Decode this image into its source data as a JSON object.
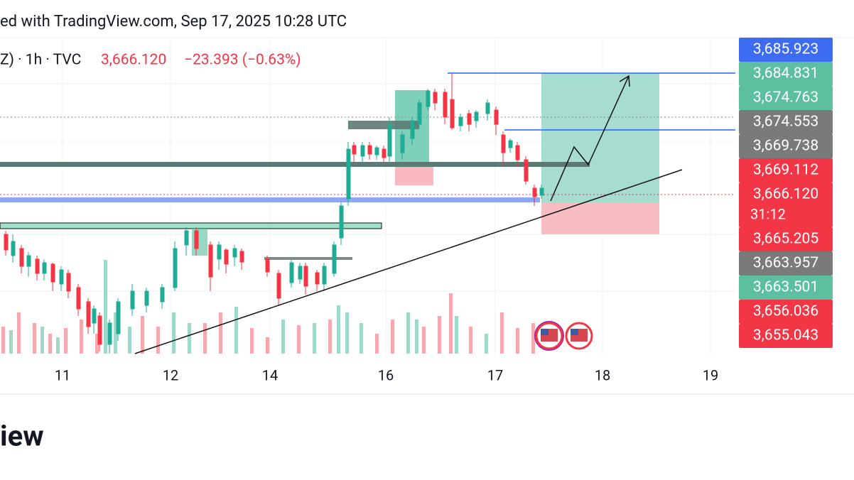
{
  "header": {
    "caption": "ed with TradingView.com, Sep 17, 2025 10:28 UTC"
  },
  "symbol": {
    "name": "Z) · 1h · TVC",
    "last": "3,666.120",
    "change": "−23.393 (−0.63%)"
  },
  "price_tags": [
    {
      "text": "3,685.923",
      "color": "#3d6cf2"
    },
    {
      "text": "3,684.831",
      "color": "#5cbf9f"
    },
    {
      "text": "3,674.763",
      "color": "#5cbf9f"
    },
    {
      "text": "3,674.553",
      "color": "#7a7a7a"
    },
    {
      "text": "3,669.738",
      "color": "#7a7a7a"
    },
    {
      "text": "3,669.112",
      "color": "#f23645"
    },
    {
      "text": "3,666.120",
      "sub": "31:12",
      "color": "#f23645"
    },
    {
      "text": "3,665.205",
      "color": "#f23645"
    },
    {
      "text": "3,663.957",
      "color": "#7a7a7a"
    },
    {
      "text": "3,663.501",
      "color": "#5cbf9f"
    },
    {
      "text": "3,656.036",
      "color": "#f23645"
    },
    {
      "text": "3,655.043",
      "color": "#f23645"
    }
  ],
  "time_axis": [
    "11",
    "12",
    "14",
    "16",
    "17",
    "18",
    "19"
  ],
  "footer": {
    "brand": "iew"
  }
}
